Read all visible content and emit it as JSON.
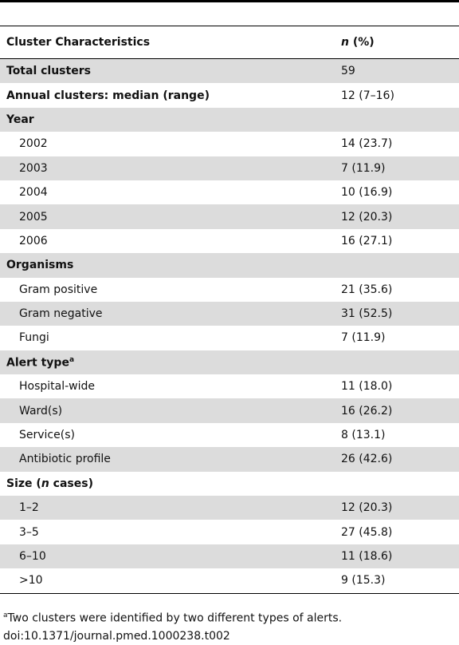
{
  "table": {
    "header": [
      [
        {
          "text": "Cluster Characteristics"
        }
      ],
      [
        {
          "text": "n",
          "italic": true
        },
        {
          "text": " (%)"
        }
      ]
    ],
    "rows": [
      {
        "kind": "group",
        "label": [
          {
            "text": "Total clusters"
          }
        ],
        "value": "59"
      },
      {
        "kind": "group",
        "label": [
          {
            "text": "Annual clusters: median (range)"
          }
        ],
        "value": "12 (7–16)"
      },
      {
        "kind": "group",
        "label": [
          {
            "text": "Year"
          }
        ],
        "value": null
      },
      {
        "kind": "item",
        "label": [
          {
            "text": "2002"
          }
        ],
        "value": "14 (23.7)"
      },
      {
        "kind": "item",
        "label": [
          {
            "text": "2003"
          }
        ],
        "value": "7 (11.9)"
      },
      {
        "kind": "item",
        "label": [
          {
            "text": "2004"
          }
        ],
        "value": "10 (16.9)"
      },
      {
        "kind": "item",
        "label": [
          {
            "text": "2005"
          }
        ],
        "value": "12 (20.3)"
      },
      {
        "kind": "item",
        "label": [
          {
            "text": "2006"
          }
        ],
        "value": "16 (27.1)"
      },
      {
        "kind": "group",
        "label": [
          {
            "text": "Organisms"
          }
        ],
        "value": null
      },
      {
        "kind": "item",
        "label": [
          {
            "text": "Gram positive"
          }
        ],
        "value": "21 (35.6)"
      },
      {
        "kind": "item",
        "label": [
          {
            "text": "Gram negative"
          }
        ],
        "value": "31 (52.5)"
      },
      {
        "kind": "item",
        "label": [
          {
            "text": "Fungi"
          }
        ],
        "value": "7 (11.9)"
      },
      {
        "kind": "group",
        "label": [
          {
            "text": "Alert type"
          },
          {
            "text": "a",
            "sup": true
          }
        ],
        "value": null
      },
      {
        "kind": "item",
        "label": [
          {
            "text": "Hospital-wide"
          }
        ],
        "value": "11 (18.0)"
      },
      {
        "kind": "item",
        "label": [
          {
            "text": "Ward(s)"
          }
        ],
        "value": "16 (26.2)"
      },
      {
        "kind": "item",
        "label": [
          {
            "text": "Service(s)"
          }
        ],
        "value": "8 (13.1)"
      },
      {
        "kind": "item",
        "label": [
          {
            "text": "Antibiotic profile"
          }
        ],
        "value": "26 (42.6)"
      },
      {
        "kind": "group",
        "label": [
          {
            "text": "Size ("
          },
          {
            "text": "n",
            "italic": true
          },
          {
            "text": " cases)"
          }
        ],
        "value": null
      },
      {
        "kind": "item",
        "label": [
          {
            "text": "1–2"
          }
        ],
        "value": "12 (20.3)"
      },
      {
        "kind": "item",
        "label": [
          {
            "text": "3–5"
          }
        ],
        "value": "27 (45.8)"
      },
      {
        "kind": "item",
        "label": [
          {
            "text": "6–10"
          }
        ],
        "value": "11 (18.6)"
      },
      {
        "kind": "item",
        "label": [
          {
            "text": ">10"
          }
        ],
        "value": "9 (15.3)"
      }
    ]
  },
  "footnote": [
    {
      "text": "a",
      "sup": true
    },
    {
      "text": "Two clusters were identified by two different types of alerts."
    }
  ],
  "doi": "doi:10.1371/journal.pmed.1000238.t002"
}
